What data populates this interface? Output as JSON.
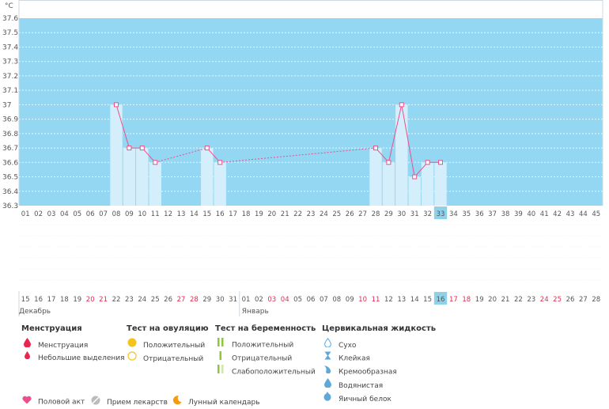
{
  "chart_data": {
    "type": "line",
    "y_unit": "°C",
    "ylim": [
      36.3,
      37.6
    ],
    "yticks": [
      "36.3",
      "36.4",
      "36.5",
      "36.6",
      "36.7",
      "36.8",
      "36.9",
      "37",
      "37.1",
      "37.2",
      "37.3",
      "37.4",
      "37.5",
      "37.6"
    ],
    "cycle_days": [
      "01",
      "02",
      "03",
      "04",
      "05",
      "06",
      "07",
      "08",
      "09",
      "10",
      "11",
      "12",
      "13",
      "14",
      "15",
      "16",
      "17",
      "18",
      "19",
      "20",
      "21",
      "22",
      "23",
      "24",
      "25",
      "26",
      "27",
      "28",
      "29",
      "30",
      "31",
      "32",
      "33",
      "34",
      "35",
      "36",
      "37",
      "38",
      "39",
      "40",
      "41",
      "42",
      "43",
      "44",
      "45"
    ],
    "dates": [
      "15",
      "16",
      "17",
      "18",
      "19",
      "20",
      "21",
      "22",
      "23",
      "24",
      "25",
      "26",
      "27",
      "28",
      "29",
      "30",
      "31",
      "01",
      "02",
      "03",
      "04",
      "05",
      "06",
      "07",
      "08",
      "09",
      "10",
      "11",
      "12",
      "13",
      "14",
      "15",
      "16",
      "17",
      "18",
      "19",
      "20",
      "21",
      "22",
      "23",
      "24",
      "25",
      "26",
      "27",
      "28"
    ],
    "weekend_dates": [
      5,
      6,
      12,
      13,
      19,
      20,
      26,
      27,
      33,
      34,
      40,
      41
    ],
    "current_day_index": 32,
    "month_labels": [
      {
        "label": "Декабрь",
        "start_index": 0
      },
      {
        "label": "Январь",
        "start_index": 17
      }
    ],
    "temperatures": [
      null,
      null,
      null,
      null,
      null,
      null,
      null,
      37.0,
      36.7,
      36.7,
      36.6,
      null,
      null,
      null,
      36.7,
      36.6,
      null,
      null,
      null,
      null,
      null,
      null,
      null,
      null,
      null,
      null,
      null,
      36.7,
      36.6,
      37.0,
      36.5,
      36.6,
      36.6,
      null,
      null,
      null,
      null,
      null,
      null,
      null,
      null,
      null,
      null,
      null,
      null
    ],
    "colors": {
      "background": "#93d7f2",
      "bar": "#d4effb",
      "line": "#ec4f8c",
      "grid": "#ffffff",
      "current_day": "#8ed2ea",
      "weekend": "#e8274f"
    }
  },
  "legend": {
    "menstruation": {
      "title": "Менструация",
      "items": [
        "Менструация",
        "Небольшие выделения"
      ]
    },
    "ovulation_test": {
      "title": "Тест на овуляцию",
      "items": [
        "Положительный",
        "Отрицательный"
      ]
    },
    "pregnancy_test": {
      "title": "Тест на беременность",
      "items": [
        "Положительный",
        "Отрицательный",
        "Слабоположительный"
      ]
    },
    "cervical_fluid": {
      "title": "Цервикальная жидкость",
      "items": [
        "Сухо",
        "Клейкая",
        "Кремообразная",
        "Водянистая",
        "Яичный белок"
      ]
    },
    "other": [
      "Половой акт",
      "Прием лекарств",
      "Лунный календарь"
    ]
  }
}
